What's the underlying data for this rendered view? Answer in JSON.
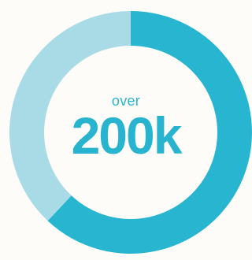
{
  "chart_data": {
    "type": "pie",
    "title": "",
    "series": [
      {
        "values": [
          62,
          38
        ]
      }
    ],
    "colors": [
      "#27b5cf",
      "#a9dbe6"
    ],
    "center_text": {
      "prefix": "over",
      "value": "200k"
    }
  },
  "colors": {
    "text": "#28b4ce",
    "background": "#fdfcf8"
  }
}
